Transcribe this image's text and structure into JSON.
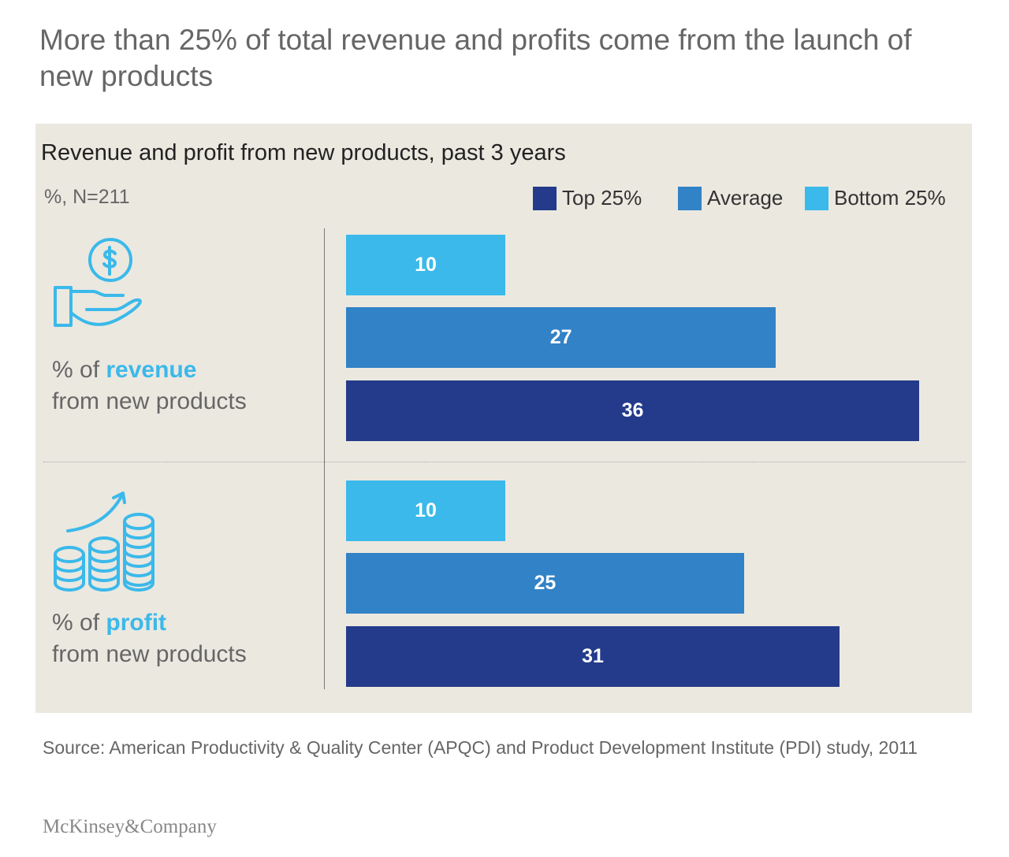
{
  "title": "More than 25% of total revenue and profits come from the launch of new products",
  "source": "Source: American Productivity & Quality Center (APQC) and Product Development Institute (PDI) study, 2011",
  "logo": "McKinsey&Company",
  "colors": {
    "top": "#233b8a",
    "average": "#3182c6",
    "bottom": "#3bb9ea",
    "background": "#ebe8e0",
    "icon": "#3bb9ea"
  },
  "chart_data": {
    "type": "bar",
    "orientation": "horizontal",
    "title": "Revenue and profit from new products, past 3 years",
    "unit_label": "%, N=211",
    "legend_position": "top-right",
    "legend": [
      "Top 25%",
      "Average",
      "Bottom 25%"
    ],
    "groups": [
      {
        "label_prefix": "% of ",
        "label_highlight": "revenue",
        "label_suffix": "from new products",
        "icon": "hand-coin-dollar-icon",
        "bars": [
          {
            "series": "Bottom 25%",
            "value": 10
          },
          {
            "series": "Average",
            "value": 27
          },
          {
            "series": "Top 25%",
            "value": 36
          }
        ]
      },
      {
        "label_prefix": "% of ",
        "label_highlight": "profit",
        "label_suffix": "from new products",
        "icon": "coin-stacks-growth-icon",
        "bars": [
          {
            "series": "Bottom 25%",
            "value": 10
          },
          {
            "series": "Average",
            "value": 25
          },
          {
            "series": "Top 25%",
            "value": 31
          }
        ]
      }
    ],
    "grid": false
  }
}
